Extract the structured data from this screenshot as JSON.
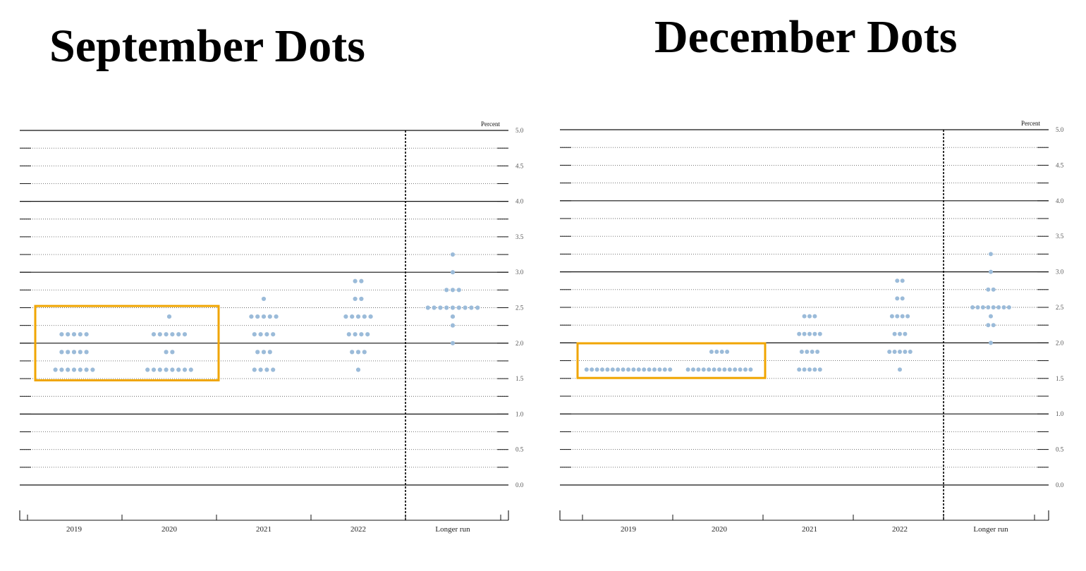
{
  "panels": [
    {
      "title": "September Dots"
    },
    {
      "title": "December Dots"
    }
  ],
  "chart_data": [
    {
      "type": "scatter",
      "title": "September Dots",
      "ylabel": "Percent",
      "ylim": [
        0,
        5
      ],
      "yticks": [
        "0.0",
        "0.5",
        "1.0",
        "1.5",
        "2.0",
        "2.5",
        "3.0",
        "3.5",
        "4.0",
        "4.5",
        "5.0"
      ],
      "categories": [
        "2019",
        "2020",
        "2021",
        "2022",
        "Longer run"
      ],
      "grid": true,
      "highlight_color": "#f0a500",
      "dot_color": "#9bbbd9",
      "highlight": {
        "categories": [
          "2019",
          "2020"
        ],
        "y_range": [
          1.625,
          2.375
        ]
      },
      "dots": [
        {
          "category": "2019",
          "levels": [
            {
              "y": 1.625,
              "count": 7
            },
            {
              "y": 1.875,
              "count": 5
            },
            {
              "y": 2.125,
              "count": 5
            }
          ]
        },
        {
          "category": "2020",
          "levels": [
            {
              "y": 1.625,
              "count": 8
            },
            {
              "y": 1.875,
              "count": 2
            },
            {
              "y": 2.125,
              "count": 6
            },
            {
              "y": 2.375,
              "count": 1
            }
          ]
        },
        {
          "category": "2021",
          "levels": [
            {
              "y": 1.625,
              "count": 4
            },
            {
              "y": 1.875,
              "count": 3
            },
            {
              "y": 2.125,
              "count": 4
            },
            {
              "y": 2.375,
              "count": 5
            },
            {
              "y": 2.625,
              "count": 1
            }
          ]
        },
        {
          "category": "2022",
          "levels": [
            {
              "y": 1.625,
              "count": 1
            },
            {
              "y": 1.875,
              "count": 3
            },
            {
              "y": 2.125,
              "count": 4
            },
            {
              "y": 2.375,
              "count": 5
            },
            {
              "y": 2.625,
              "count": 2
            },
            {
              "y": 2.875,
              "count": 2
            }
          ]
        },
        {
          "category": "Longer run",
          "levels": [
            {
              "y": 2.0,
              "count": 1
            },
            {
              "y": 2.25,
              "count": 1
            },
            {
              "y": 2.375,
              "count": 1
            },
            {
              "y": 2.5,
              "count": 9
            },
            {
              "y": 2.75,
              "count": 3
            },
            {
              "y": 3.0,
              "count": 1
            },
            {
              "y": 3.25,
              "count": 1
            }
          ]
        }
      ]
    },
    {
      "type": "scatter",
      "title": "December Dots",
      "ylabel": "Percent",
      "ylim": [
        0,
        5
      ],
      "yticks": [
        "0.0",
        "0.5",
        "1.0",
        "1.5",
        "2.0",
        "2.5",
        "3.0",
        "3.5",
        "4.0",
        "4.5",
        "5.0"
      ],
      "categories": [
        "2019",
        "2020",
        "2021",
        "2022",
        "Longer run"
      ],
      "grid": true,
      "highlight_color": "#f0a500",
      "dot_color": "#9bbbd9",
      "highlight": {
        "categories": [
          "2019",
          "2020"
        ],
        "y_range": [
          1.625,
          1.875
        ]
      },
      "dots": [
        {
          "category": "2019",
          "levels": [
            {
              "y": 1.625,
              "count": 17
            }
          ]
        },
        {
          "category": "2020",
          "levels": [
            {
              "y": 1.625,
              "count": 13
            },
            {
              "y": 1.875,
              "count": 4
            }
          ]
        },
        {
          "category": "2021",
          "levels": [
            {
              "y": 1.625,
              "count": 5
            },
            {
              "y": 1.875,
              "count": 4
            },
            {
              "y": 2.125,
              "count": 5
            },
            {
              "y": 2.375,
              "count": 3
            }
          ]
        },
        {
          "category": "2022",
          "levels": [
            {
              "y": 1.625,
              "count": 1
            },
            {
              "y": 1.875,
              "count": 5
            },
            {
              "y": 2.125,
              "count": 3
            },
            {
              "y": 2.375,
              "count": 4
            },
            {
              "y": 2.625,
              "count": 2
            },
            {
              "y": 2.875,
              "count": 2
            }
          ]
        },
        {
          "category": "Longer run",
          "levels": [
            {
              "y": 2.0,
              "count": 1
            },
            {
              "y": 2.25,
              "count": 2
            },
            {
              "y": 2.375,
              "count": 1
            },
            {
              "y": 2.5,
              "count": 8
            },
            {
              "y": 2.75,
              "count": 2
            },
            {
              "y": 3.0,
              "count": 1
            },
            {
              "y": 3.25,
              "count": 1
            }
          ]
        }
      ]
    }
  ]
}
